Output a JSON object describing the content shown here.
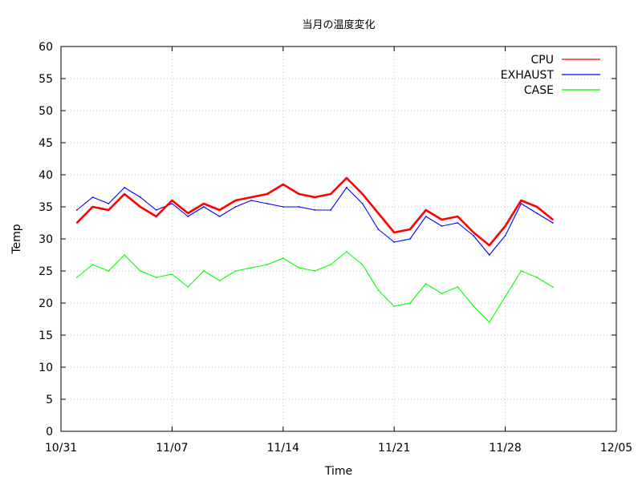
{
  "chart_data": {
    "type": "line",
    "title": "当月の温度変化",
    "xlabel": "Time",
    "ylabel": "Temp",
    "ylim": [
      0,
      60
    ],
    "yticks": [
      0,
      5,
      10,
      15,
      20,
      25,
      30,
      35,
      40,
      45,
      50,
      55,
      60
    ],
    "xlim": [
      "10/31",
      "12/05"
    ],
    "xticks": [
      "10/31",
      "11/07",
      "11/14",
      "11/21",
      "11/28",
      "12/05"
    ],
    "grid": true,
    "legend_position": "top-right",
    "series": [
      {
        "name": "CPU",
        "color": "#ff0000",
        "x": [
          "11/01",
          "11/02",
          "11/03",
          "11/04",
          "11/05",
          "11/06",
          "11/07",
          "11/08",
          "11/09",
          "11/10",
          "11/11",
          "11/12",
          "11/13",
          "11/14",
          "11/15",
          "11/16",
          "11/17",
          "11/18",
          "11/19",
          "11/20",
          "11/21",
          "11/22",
          "11/23",
          "11/24",
          "11/25",
          "11/26",
          "11/27",
          "11/28",
          "11/29",
          "11/30",
          "12/01"
        ],
        "values": [
          32.5,
          35.0,
          34.5,
          37.0,
          35.0,
          33.5,
          36.0,
          34.0,
          35.5,
          34.5,
          36.0,
          36.5,
          37.0,
          38.5,
          37.0,
          36.5,
          37.0,
          39.5,
          37.0,
          34.0,
          31.0,
          31.5,
          34.5,
          33.0,
          33.5,
          31.0,
          29.0,
          32.0,
          36.0,
          35.0,
          33.0
        ]
      },
      {
        "name": "EXHAUST",
        "color": "#0000ff",
        "x": [
          "11/01",
          "11/02",
          "11/03",
          "11/04",
          "11/05",
          "11/06",
          "11/07",
          "11/08",
          "11/09",
          "11/10",
          "11/11",
          "11/12",
          "11/13",
          "11/14",
          "11/15",
          "11/16",
          "11/17",
          "11/18",
          "11/19",
          "11/20",
          "11/21",
          "11/22",
          "11/23",
          "11/24",
          "11/25",
          "11/26",
          "11/27",
          "11/28",
          "11/29",
          "11/30",
          "12/01"
        ],
        "values": [
          34.5,
          36.5,
          35.5,
          38.0,
          36.5,
          34.5,
          35.5,
          33.5,
          35.0,
          33.5,
          35.0,
          36.0,
          35.5,
          35.0,
          35.0,
          34.5,
          34.5,
          38.0,
          35.5,
          31.5,
          29.5,
          30.0,
          33.5,
          32.0,
          32.5,
          30.5,
          27.5,
          30.5,
          35.5,
          34.0,
          32.5
        ]
      },
      {
        "name": "CASE",
        "color": "#00ff00",
        "x": [
          "11/01",
          "11/02",
          "11/03",
          "11/04",
          "11/05",
          "11/06",
          "11/07",
          "11/08",
          "11/09",
          "11/10",
          "11/11",
          "11/12",
          "11/13",
          "11/14",
          "11/15",
          "11/16",
          "11/17",
          "11/18",
          "11/19",
          "11/20",
          "11/21",
          "11/22",
          "11/23",
          "11/24",
          "11/25",
          "11/26",
          "11/27",
          "11/28",
          "11/29",
          "11/30",
          "12/01"
        ],
        "values": [
          24.0,
          26.0,
          25.0,
          27.5,
          25.0,
          24.0,
          24.5,
          22.5,
          25.0,
          23.5,
          25.0,
          25.5,
          26.0,
          27.0,
          25.5,
          25.0,
          26.0,
          28.0,
          26.0,
          22.0,
          19.5,
          20.0,
          23.0,
          21.5,
          22.5,
          19.5,
          17.0,
          21.0,
          25.0,
          24.0,
          22.5
        ]
      }
    ]
  }
}
